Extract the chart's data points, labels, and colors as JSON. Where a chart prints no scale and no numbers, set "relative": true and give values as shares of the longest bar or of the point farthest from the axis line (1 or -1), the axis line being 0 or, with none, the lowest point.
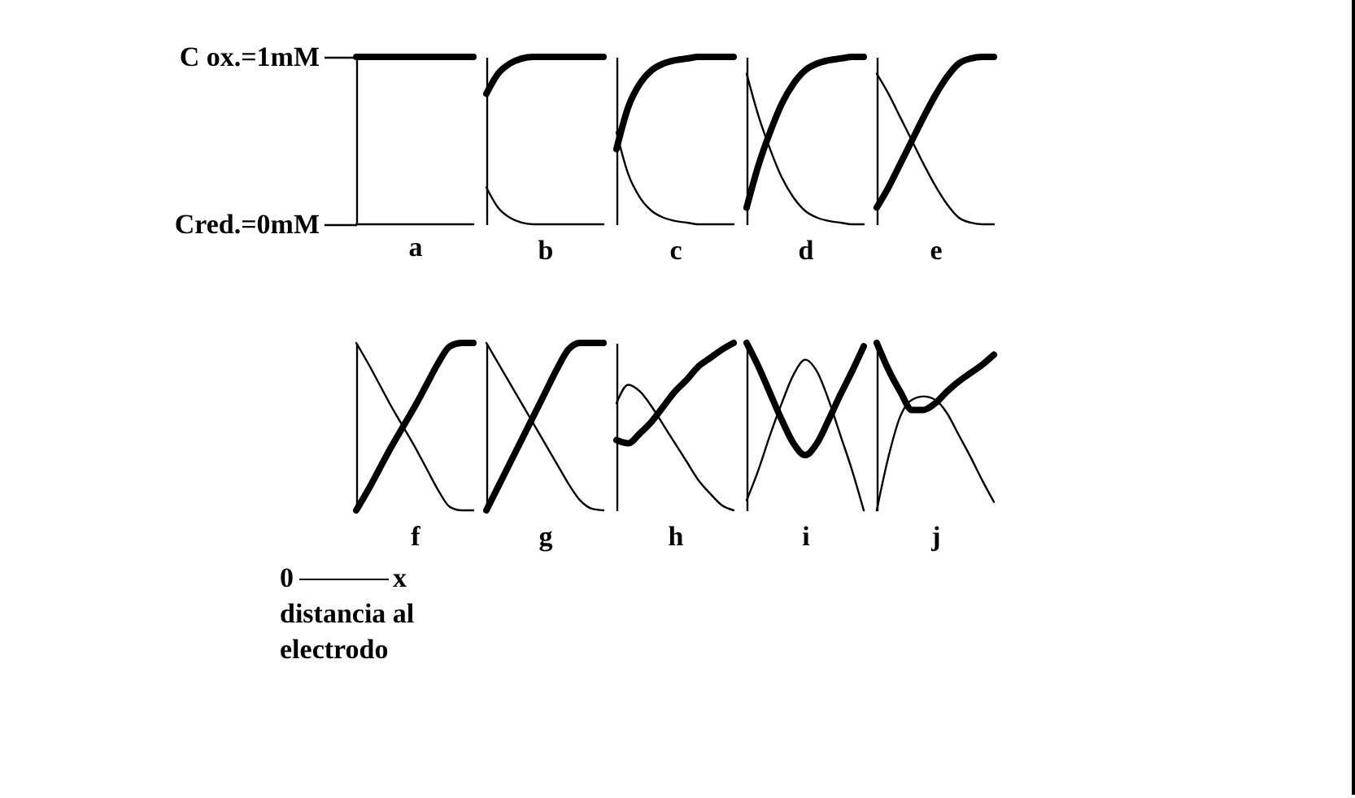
{
  "chart_data": [
    {
      "type": "line",
      "xlabel": "a",
      "categories": [
        null,
        null,
        null,
        null,
        null,
        null,
        null,
        null,
        null,
        null,
        null
      ],
      "ylim": [
        0,
        1
      ],
      "yticks": [
        {
          "value": 1,
          "label": "C ox.=1mM"
        },
        {
          "value": 0,
          "label": "Cred.=0mM"
        }
      ],
      "tick_labels": "y",
      "annotations": [
        "0",
        "x",
        "distancia al electrodo"
      ],
      "series": [
        {
          "color": "#000000",
          "values": [
            1,
            1,
            1,
            1,
            1,
            1,
            1,
            1,
            1,
            1,
            1
          ]
        },
        {
          "color": "#000000",
          "values": [
            0,
            0,
            0,
            0,
            0,
            0,
            0,
            0,
            0,
            0,
            0
          ]
        }
      ]
    },
    {
      "type": "line",
      "xlabel": "b",
      "relative": true,
      "categories": [
        null,
        null,
        null,
        null,
        null,
        null,
        null,
        null,
        null,
        null,
        null
      ],
      "series": [
        {
          "color": "#000000",
          "values": [
            0.78,
            0.9,
            0.96,
            0.99,
            1,
            1,
            1,
            1,
            1,
            1,
            1
          ]
        },
        {
          "color": "#000000",
          "values": [
            0.22,
            0.1,
            0.04,
            0.01,
            0,
            0,
            0,
            0,
            0,
            0,
            0
          ]
        }
      ]
    },
    {
      "type": "line",
      "xlabel": "c",
      "relative": true,
      "categories": [
        null,
        null,
        null,
        null,
        null,
        null,
        null,
        null,
        null,
        null,
        null
      ],
      "series": [
        {
          "color": "#000000",
          "values": [
            0.45,
            0.7,
            0.84,
            0.92,
            0.96,
            0.98,
            0.99,
            1,
            1,
            1,
            1
          ]
        },
        {
          "color": "#000000",
          "values": [
            0.55,
            0.3,
            0.16,
            0.08,
            0.04,
            0.02,
            0.01,
            0,
            0,
            0,
            0
          ]
        }
      ]
    },
    {
      "type": "line",
      "xlabel": "d",
      "relative": true,
      "categories": [
        null,
        null,
        null,
        null,
        null,
        null,
        null,
        null,
        null,
        null,
        null
      ],
      "series": [
        {
          "color": "#000000",
          "values": [
            0.1,
            0.35,
            0.55,
            0.72,
            0.84,
            0.92,
            0.96,
            0.98,
            0.99,
            1,
            1
          ]
        },
        {
          "color": "#000000",
          "values": [
            0.9,
            0.65,
            0.45,
            0.28,
            0.16,
            0.08,
            0.04,
            0.02,
            0.01,
            0,
            0
          ]
        }
      ]
    },
    {
      "type": "line",
      "xlabel": "e",
      "relative": true,
      "categories": [
        null,
        null,
        null,
        null,
        null,
        null,
        null,
        null,
        null,
        null,
        null
      ],
      "series": [
        {
          "color": "#000000",
          "values": [
            0.1,
            0.22,
            0.36,
            0.5,
            0.64,
            0.77,
            0.88,
            0.96,
            0.99,
            1,
            1
          ]
        },
        {
          "color": "#000000",
          "values": [
            0.9,
            0.78,
            0.64,
            0.5,
            0.36,
            0.23,
            0.12,
            0.04,
            0.01,
            0,
            0
          ]
        }
      ]
    },
    {
      "type": "line",
      "xlabel": "f",
      "relative": true,
      "categories": [
        null,
        null,
        null,
        null,
        null,
        null,
        null,
        null,
        null,
        null,
        null
      ],
      "series": [
        {
          "color": "#000000",
          "values": [
            0,
            0.12,
            0.25,
            0.38,
            0.5,
            0.62,
            0.75,
            0.88,
            0.98,
            1,
            1
          ]
        },
        {
          "color": "#000000",
          "values": [
            1,
            0.88,
            0.75,
            0.62,
            0.5,
            0.38,
            0.25,
            0.12,
            0.02,
            0,
            0
          ]
        }
      ]
    },
    {
      "type": "line",
      "xlabel": "g",
      "relative": true,
      "categories": [
        null,
        null,
        null,
        null,
        null,
        null,
        null,
        null,
        null,
        null,
        null
      ],
      "series": [
        {
          "color": "#000000",
          "values": [
            0,
            0.14,
            0.28,
            0.42,
            0.56,
            0.7,
            0.84,
            0.96,
            1,
            1,
            1
          ]
        },
        {
          "color": "#000000",
          "values": [
            1,
            0.88,
            0.76,
            0.64,
            0.52,
            0.4,
            0.28,
            0.16,
            0.06,
            0.01,
            0
          ]
        }
      ]
    },
    {
      "type": "line",
      "xlabel": "h",
      "relative": true,
      "categories": [
        null,
        null,
        null,
        null,
        null,
        null,
        null,
        null,
        null,
        null,
        null
      ],
      "series": [
        {
          "color": "#000000",
          "values": [
            0.42,
            0.4,
            0.46,
            0.53,
            0.62,
            0.71,
            0.78,
            0.86,
            0.91,
            0.96,
            1
          ]
        },
        {
          "color": "#000000",
          "values": [
            0.64,
            0.75,
            0.71,
            0.62,
            0.51,
            0.4,
            0.29,
            0.18,
            0.1,
            0.03,
            0
          ]
        }
      ]
    },
    {
      "type": "line",
      "xlabel": "i",
      "relative": true,
      "categories": [
        null,
        null,
        null,
        null,
        null,
        null,
        null,
        null,
        null,
        null,
        null
      ],
      "series": [
        {
          "color": "#000000",
          "values": [
            1,
            0.86,
            0.7,
            0.54,
            0.4,
            0.33,
            0.4,
            0.54,
            0.69,
            0.83,
            0.98
          ]
        },
        {
          "color": "#000000",
          "values": [
            0.06,
            0.24,
            0.45,
            0.64,
            0.81,
            0.9,
            0.83,
            0.66,
            0.45,
            0.24,
            0
          ]
        }
      ]
    },
    {
      "type": "line",
      "xlabel": "j",
      "relative": true,
      "categories": [
        null,
        null,
        null,
        null,
        null,
        null,
        null,
        null,
        null,
        null,
        null
      ],
      "series": [
        {
          "color": "#000000",
          "values": [
            1,
            0.84,
            0.71,
            0.6,
            0.6,
            0.64,
            0.71,
            0.77,
            0.82,
            0.87,
            0.93
          ]
        },
        {
          "color": "#000000",
          "values": [
            0,
            0.32,
            0.56,
            0.66,
            0.68,
            0.66,
            0.58,
            0.45,
            0.32,
            0.18,
            0.05
          ]
        }
      ]
    }
  ]
}
